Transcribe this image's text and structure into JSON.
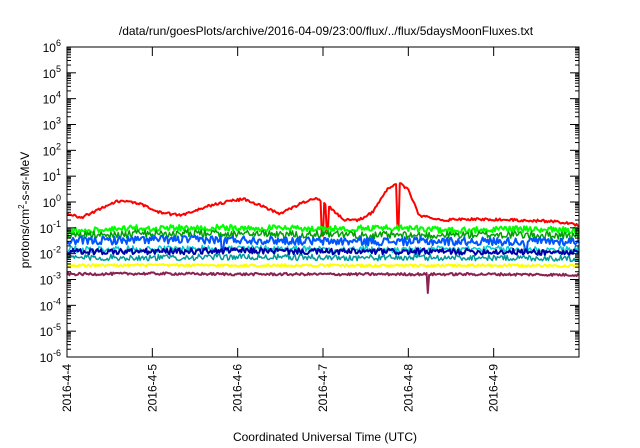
{
  "chart_data": {
    "type": "line",
    "title": "/data/run/goesPlots/archive/2016-04-09/23:00/flux/../flux/5daysMoonFluxes.txt",
    "xlabel": "Coordinated Universal Time (UTC)",
    "ylabel_prefix": "protons/cm",
    "ylabel_sup": "2",
    "ylabel_suffix": "-s-sr-MeV",
    "y_scale": "log",
    "ylim": [
      1e-06,
      1000000.0
    ],
    "xlim": [
      "2016-04-04",
      "2016-04-10"
    ],
    "y_ticks": [
      {
        "base": "10",
        "exp": "-6",
        "value": 1e-06
      },
      {
        "base": "10",
        "exp": "-5",
        "value": 1e-05
      },
      {
        "base": "10",
        "exp": "-4",
        "value": 0.0001
      },
      {
        "base": "10",
        "exp": "-3",
        "value": 0.001
      },
      {
        "base": "10",
        "exp": "-2",
        "value": 0.01
      },
      {
        "base": "10",
        "exp": "-1",
        "value": 0.1
      },
      {
        "base": "10",
        "exp": "0",
        "value": 1
      },
      {
        "base": "10",
        "exp": "1",
        "value": 10
      },
      {
        "base": "10",
        "exp": "2",
        "value": 100
      },
      {
        "base": "10",
        "exp": "3",
        "value": 1000
      },
      {
        "base": "10",
        "exp": "4",
        "value": 10000
      },
      {
        "base": "10",
        "exp": "5",
        "value": 100000
      },
      {
        "base": "10",
        "exp": "6",
        "value": 1000000
      }
    ],
    "x_ticks": [
      "2016-4-4",
      "2016-4-5",
      "2016-4-6",
      "2016-4-7",
      "2016-4-8",
      "2016-4-9"
    ],
    "grid": false,
    "legend": "none",
    "series": [
      {
        "color": "#ff0000",
        "width": 2,
        "jitter": 0.05,
        "dips": [
          [
            2.99,
            0.05
          ],
          [
            3.05,
            0.08
          ],
          [
            3.88,
            0.12
          ]
        ],
        "points": [
          [
            "2016-04-04 00:00",
            0.35
          ],
          [
            "2016-04-04 04:00",
            0.25
          ],
          [
            "2016-04-04 10:00",
            0.6
          ],
          [
            "2016-04-04 14:00",
            1.1
          ],
          [
            "2016-04-04 20:00",
            0.9
          ],
          [
            "2016-04-05 02:00",
            0.4
          ],
          [
            "2016-04-05 08:00",
            0.3
          ],
          [
            "2016-04-05 14:00",
            0.6
          ],
          [
            "2016-04-05 22:00",
            1.1
          ],
          [
            "2016-04-06 02:00",
            1.3
          ],
          [
            "2016-04-06 08:00",
            0.6
          ],
          [
            "2016-04-06 12:00",
            0.35
          ],
          [
            "2016-04-06 18:00",
            0.9
          ],
          [
            "2016-04-06 22:00",
            1.5
          ],
          [
            "2016-04-07 02:00",
            0.6
          ],
          [
            "2016-04-07 06:00",
            0.2
          ],
          [
            "2016-04-07 10:00",
            0.2
          ],
          [
            "2016-04-07 14:00",
            0.4
          ],
          [
            "2016-04-07 18:00",
            3.0
          ],
          [
            "2016-04-07 21:00",
            6.0
          ],
          [
            "2016-04-08 00:00",
            3.0
          ],
          [
            "2016-04-08 03:00",
            0.3
          ],
          [
            "2016-04-08 10:00",
            0.2
          ],
          [
            "2016-04-08 20:00",
            0.22
          ],
          [
            "2016-04-09 06:00",
            0.2
          ],
          [
            "2016-04-09 16:00",
            0.18
          ],
          [
            "2016-04-10 00:00",
            0.13
          ]
        ]
      },
      {
        "color": "#00ff00",
        "width": 2,
        "jitter": 0.12,
        "dips": [],
        "points": [
          [
            "2016-04-04 00:00",
            0.08
          ],
          [
            "2016-04-05 00:00",
            0.1
          ],
          [
            "2016-04-06 00:00",
            0.1
          ],
          [
            "2016-04-07 00:00",
            0.09
          ],
          [
            "2016-04-07 20:00",
            0.1
          ],
          [
            "2016-04-08 12:00",
            0.08
          ],
          [
            "2016-04-09 12:00",
            0.09
          ],
          [
            "2016-04-10 00:00",
            0.08
          ]
        ]
      },
      {
        "color": "#00a000",
        "width": 1.5,
        "jitter": 0.15,
        "dips": [],
        "points": [
          [
            "2016-04-04 00:00",
            0.05
          ],
          [
            "2016-04-05 00:00",
            0.06
          ],
          [
            "2016-04-06 00:00",
            0.06
          ],
          [
            "2016-04-07 00:00",
            0.055
          ],
          [
            "2016-04-08 00:00",
            0.05
          ],
          [
            "2016-04-09 00:00",
            0.055
          ],
          [
            "2016-04-10 00:00",
            0.05
          ]
        ]
      },
      {
        "color": "#0055ff",
        "width": 2,
        "jitter": 0.16,
        "dips": [
          [
            1.82,
            0.012
          ],
          [
            5.38,
            0.012
          ]
        ],
        "points": [
          [
            "2016-04-04 00:00",
            0.03
          ],
          [
            "2016-04-05 00:00",
            0.035
          ],
          [
            "2016-04-06 00:00",
            0.035
          ],
          [
            "2016-04-07 00:00",
            0.03
          ],
          [
            "2016-04-08 00:00",
            0.03
          ],
          [
            "2016-04-09 00:00",
            0.03
          ],
          [
            "2016-04-10 00:00",
            0.03
          ]
        ]
      },
      {
        "color": "#00cccc",
        "width": 1.5,
        "jitter": 0.13,
        "dips": [
          [
            2.6,
            0.006
          ],
          [
            4.1,
            0.007
          ]
        ],
        "points": [
          [
            "2016-04-04 00:00",
            0.015
          ],
          [
            "2016-04-05 00:00",
            0.015
          ],
          [
            "2016-04-06 00:00",
            0.016
          ],
          [
            "2016-04-07 00:00",
            0.015
          ],
          [
            "2016-04-08 00:00",
            0.014
          ],
          [
            "2016-04-09 00:00",
            0.015
          ],
          [
            "2016-04-10 00:00",
            0.014
          ]
        ]
      },
      {
        "color": "#0000aa",
        "width": 2,
        "jitter": 0.12,
        "dips": [],
        "points": [
          [
            "2016-04-04 00:00",
            0.012
          ],
          [
            "2016-04-05 00:00",
            0.012
          ],
          [
            "2016-04-06 00:00",
            0.013
          ],
          [
            "2016-04-07 00:00",
            0.012
          ],
          [
            "2016-04-08 00:00",
            0.012
          ],
          [
            "2016-04-09 00:00",
            0.012
          ],
          [
            "2016-04-10 00:00",
            0.011
          ]
        ]
      },
      {
        "color": "#009999",
        "width": 1.5,
        "jitter": 0.12,
        "dips": [],
        "points": [
          [
            "2016-04-04 00:00",
            0.007
          ],
          [
            "2016-04-05 00:00",
            0.007
          ],
          [
            "2016-04-06 00:00",
            0.0075
          ],
          [
            "2016-04-07 00:00",
            0.007
          ],
          [
            "2016-04-08 00:00",
            0.007
          ],
          [
            "2016-04-09 00:00",
            0.007
          ],
          [
            "2016-04-10 00:00",
            0.0065
          ]
        ]
      },
      {
        "color": "#ffff00",
        "width": 2,
        "jitter": 0.05,
        "dips": [],
        "points": [
          [
            "2016-04-04 00:00",
            0.0035
          ],
          [
            "2016-04-05 00:00",
            0.0036
          ],
          [
            "2016-04-06 00:00",
            0.0035
          ],
          [
            "2016-04-07 00:00",
            0.0035
          ],
          [
            "2016-04-08 00:00",
            0.0034
          ],
          [
            "2016-04-09 00:00",
            0.0035
          ],
          [
            "2016-04-10 00:00",
            0.0034
          ]
        ]
      },
      {
        "color": "#8b2252",
        "width": 2,
        "jitter": 0.05,
        "dips": [
          [
            4.23,
            0.0003
          ]
        ],
        "points": [
          [
            "2016-04-04 00:00",
            0.0016
          ],
          [
            "2016-04-05 00:00",
            0.0017
          ],
          [
            "2016-04-06 00:00",
            0.0016
          ],
          [
            "2016-04-07 00:00",
            0.0016
          ],
          [
            "2016-04-08 00:00",
            0.0016
          ],
          [
            "2016-04-09 00:00",
            0.0016
          ],
          [
            "2016-04-10 00:00",
            0.0015
          ]
        ]
      }
    ]
  }
}
